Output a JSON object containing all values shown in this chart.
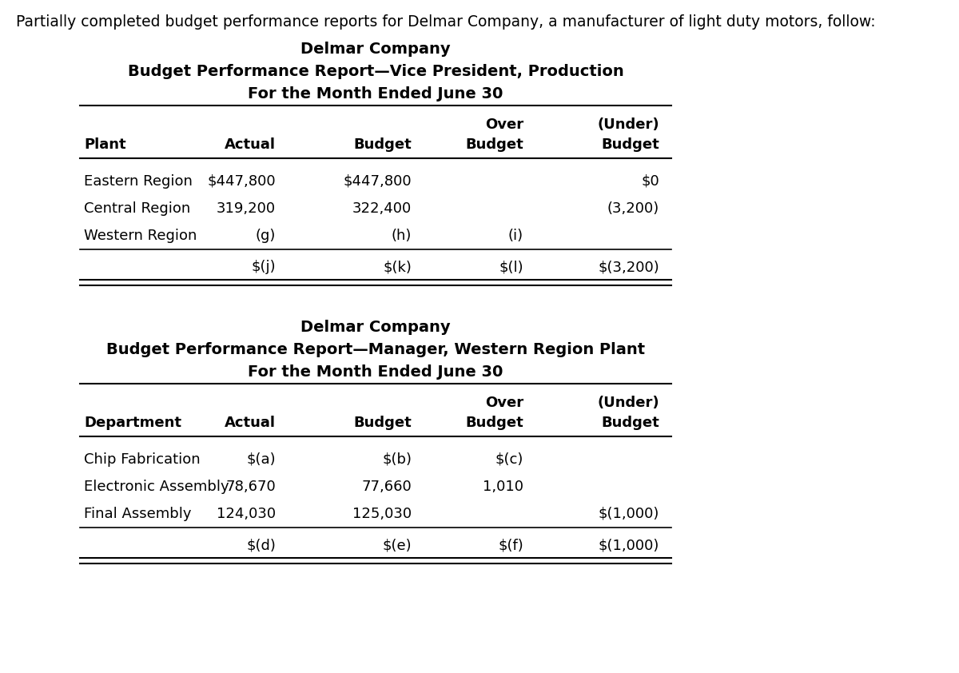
{
  "intro_text": "Partially completed budget performance reports for Delmar Company, a manufacturer of light duty motors, follow:",
  "table1": {
    "title1": "Delmar Company",
    "title2": "Budget Performance Report—Vice President, Production",
    "title3": "For the Month Ended June 30",
    "col_headers_line1": [
      "",
      "",
      "",
      "Over",
      "(Under)"
    ],
    "col_headers_line2": [
      "Plant",
      "Actual",
      "Budget",
      "Budget",
      "Budget"
    ],
    "rows": [
      [
        "Eastern Region",
        "$447,800",
        "$447,800",
        "",
        "$0"
      ],
      [
        "Central Region",
        "319,200",
        "322,400",
        "",
        "(3,200)"
      ],
      [
        "Western Region",
        "(g)",
        "(h)",
        "(i)",
        ""
      ]
    ],
    "total_row": [
      "",
      "$(j)",
      "$(k)",
      "$(l)",
      "$(3,200)"
    ]
  },
  "table2": {
    "title1": "Delmar Company",
    "title2": "Budget Performance Report—Manager, Western Region Plant",
    "title3": "For the Month Ended June 30",
    "col_headers_line1": [
      "",
      "",
      "",
      "Over",
      "(Under)"
    ],
    "col_headers_line2": [
      "Department",
      "Actual",
      "Budget",
      "Budget",
      "Budget"
    ],
    "rows": [
      [
        "Chip Fabrication",
        "$(a)",
        "$(b)",
        "$(c)",
        ""
      ],
      [
        "Electronic Assembly",
        "78,670",
        "77,660",
        "1,010",
        ""
      ],
      [
        "Final Assembly",
        "124,030",
        "125,030",
        "",
        "$(1,000)"
      ]
    ],
    "total_row": [
      "",
      "$(d)",
      "$(e)",
      "$(f)",
      "$(1,000)"
    ]
  },
  "bg_color": "#ffffff",
  "text_color": "#000000",
  "font_size_intro": 13.5,
  "font_size_title": 14,
  "font_size_table": 13
}
